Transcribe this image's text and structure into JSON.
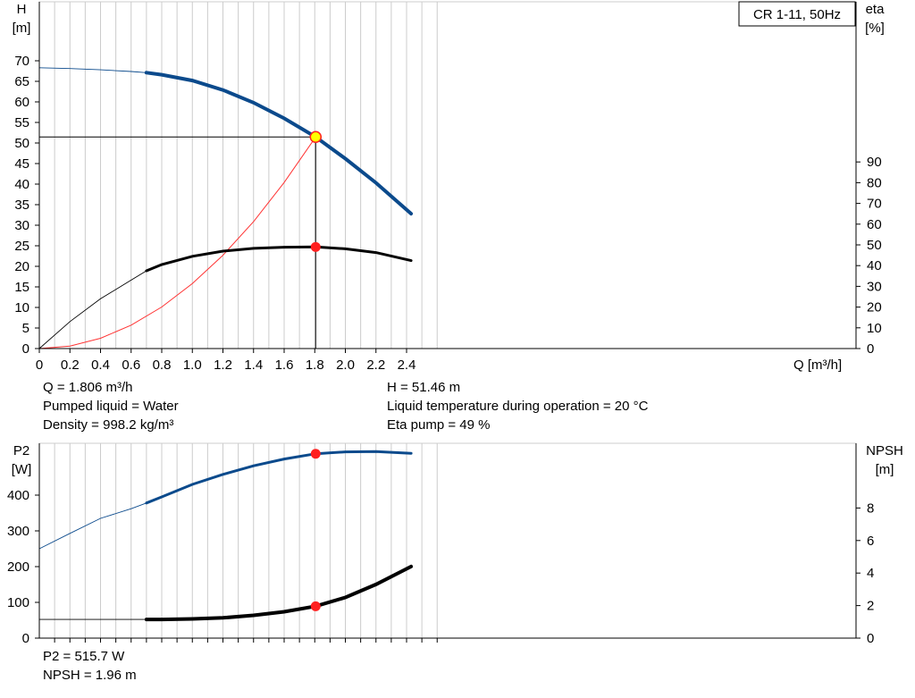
{
  "colors": {
    "head": "#0b4a8c",
    "efficiency": "#000000",
    "system": "#ff3333",
    "point": "#ff2020",
    "duty_point": "#ffff00",
    "p2": "#0b4a8c",
    "npsh": "#000000",
    "grid": "#cccccc"
  },
  "chart_data": [
    {
      "type": "line",
      "title": "CR 1-11, 50Hz",
      "xlabel": "Q [m³/h]",
      "ylabel": "H\n[m]",
      "y2label": "eta\n[%]",
      "xlim": [
        0,
        2.6
      ],
      "ylim": [
        0,
        75
      ],
      "y2lim": [
        0,
        170
      ],
      "x_ticks": [
        0,
        0.2,
        0.4,
        0.6,
        0.8,
        1.0,
        1.2,
        1.4,
        1.6,
        1.8,
        2.0,
        2.2,
        2.4
      ],
      "x_tick_labels": [
        "0",
        "0.2",
        "0.4",
        "0.6",
        "0.8",
        "1.0",
        "1.2",
        "1.4",
        "1.6",
        "1.8",
        "2.0",
        "2.2",
        "2.4"
      ],
      "y_ticks": [
        0,
        5,
        10,
        15,
        20,
        25,
        30,
        35,
        40,
        45,
        50,
        55,
        60,
        65,
        70
      ],
      "y2_ticks": [
        0,
        10,
        20,
        30,
        40,
        50,
        60,
        70,
        80,
        90
      ],
      "grid": true,
      "series": [
        {
          "key": "H",
          "axis": "left",
          "color_key": "head",
          "extended_until": 0.7,
          "x": [
            0,
            0.2,
            0.4,
            0.6,
            0.7,
            0.8,
            1.0,
            1.2,
            1.4,
            1.6,
            1.806,
            2.0,
            2.2,
            2.43
          ],
          "y": [
            68.3,
            68.1,
            67.8,
            67.4,
            67.1,
            66.6,
            65.2,
            62.9,
            59.8,
            56.0,
            51.46,
            46.2,
            40.3,
            32.8
          ]
        },
        {
          "key": "eta",
          "axis": "right",
          "color_key": "efficiency",
          "extended_until": 0.7,
          "x": [
            0,
            0.2,
            0.4,
            0.6,
            0.7,
            0.8,
            1.0,
            1.2,
            1.4,
            1.6,
            1.806,
            2.0,
            2.2,
            2.43
          ],
          "y": [
            0,
            13,
            24,
            33,
            37.5,
            40.5,
            44.5,
            47.0,
            48.3,
            48.9,
            49,
            48.1,
            46.3,
            42.4
          ]
        },
        {
          "key": "system",
          "axis": "left",
          "color_key": "system",
          "thin": true,
          "x": [
            0,
            0.2,
            0.4,
            0.6,
            0.8,
            1.0,
            1.2,
            1.4,
            1.6,
            1.806
          ],
          "y": [
            0,
            0.6,
            2.5,
            5.7,
            10.1,
            15.8,
            22.7,
            30.9,
            40.4,
            51.46
          ]
        }
      ],
      "duty_point": {
        "q": 1.806,
        "h": 51.46,
        "eta": 49
      }
    },
    {
      "type": "line",
      "xlim": [
        0,
        2.6
      ],
      "ylabel": "P2\n[W]",
      "y2label": "NPSH\n[m]",
      "ylim": [
        0,
        545
      ],
      "y2lim": [
        0,
        10.9
      ],
      "y_ticks": [
        0,
        100,
        200,
        300,
        400
      ],
      "y2_ticks": [
        0,
        2,
        4,
        6,
        8
      ],
      "grid": true,
      "series": [
        {
          "key": "P2",
          "axis": "left",
          "color_key": "p2",
          "extended_until": 0.7,
          "x": [
            0,
            0.2,
            0.4,
            0.6,
            0.7,
            0.8,
            1.0,
            1.2,
            1.4,
            1.6,
            1.806,
            2.0,
            2.2,
            2.43
          ],
          "y": [
            250,
            293,
            335,
            362,
            378,
            395,
            430,
            458,
            482,
            501,
            515.7,
            521,
            522,
            517
          ]
        },
        {
          "key": "NPSH",
          "axis": "right",
          "color_key": "npsh",
          "extended_until": 0.7,
          "x": [
            0,
            0.7,
            0.8,
            1.0,
            1.2,
            1.4,
            1.6,
            1.806,
            2.0,
            2.2,
            2.43
          ],
          "y": [
            1.15,
            1.15,
            1.15,
            1.18,
            1.25,
            1.4,
            1.62,
            1.96,
            2.5,
            3.3,
            4.4
          ]
        }
      ],
      "duty_point": {
        "q": 1.806,
        "p2": 515.7,
        "npsh": 1.96
      }
    }
  ],
  "info_top": [
    "Q = 1.806 m³/h",
    "Pumped liquid = Water",
    "Density = 998.2 kg/m³",
    "H = 51.46 m",
    "Liquid temperature during operation = 20 °C",
    "Eta pump = 49 %"
  ],
  "info_bottom": [
    "P2 = 515.7 W",
    "NPSH = 1.96 m"
  ]
}
